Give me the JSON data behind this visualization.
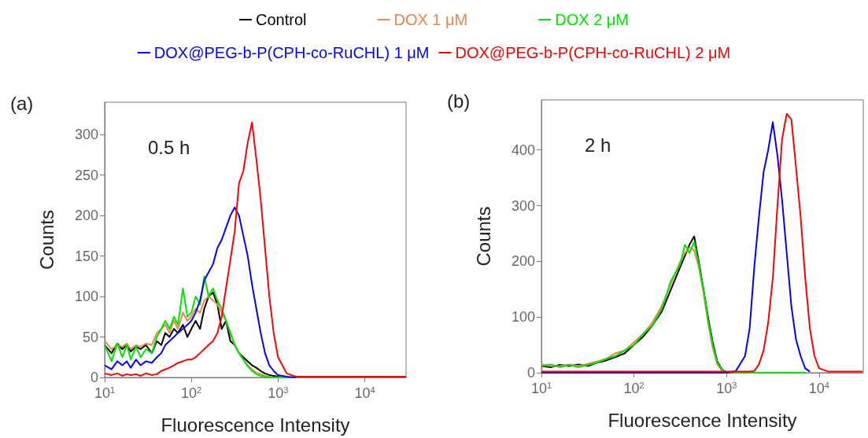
{
  "chart_data": [
    {
      "type": "line",
      "title": "(a)",
      "xlabel": "Fluorescence Intensity",
      "ylabel": "Counts",
      "annotations": [
        "0.5 h"
      ],
      "log": "x",
      "legend": "top",
      "xlim": [
        10,
        30000
      ],
      "xticks": [
        {
          "value": 10,
          "label": "10$^{1}$"
        },
        {
          "value": 100,
          "label": "10$^{2}$"
        },
        {
          "value": 1000,
          "label": "10$^{3}$"
        },
        {
          "value": 10000,
          "label": "10$^{4}$"
        }
      ],
      "ylim": [
        0,
        340
      ],
      "yticks": [
        0,
        50,
        100,
        150,
        200,
        250,
        300
      ],
      "x": [
        10,
        12,
        14,
        16,
        18,
        20,
        23,
        26,
        30,
        35,
        40,
        45,
        50,
        56,
        63,
        70,
        80,
        90,
        100,
        112,
        126,
        141,
        158,
        178,
        200,
        224,
        251,
        282,
        316,
        355,
        398,
        447,
        501,
        562,
        631,
        708,
        794,
        891,
        1000,
        1260,
        1600,
        2000,
        5000,
        10000,
        30000
      ],
      "series": [
        {
          "name": "Control",
          "color": "#000000",
          "values": [
            40,
            30,
            42,
            35,
            40,
            32,
            38,
            35,
            40,
            30,
            45,
            40,
            55,
            50,
            60,
            55,
            65,
            50,
            60,
            70,
            60,
            85,
            100,
            105,
            90,
            60,
            70,
            45,
            40,
            30,
            25,
            20,
            15,
            12,
            8,
            5,
            3,
            2,
            1,
            0,
            0,
            null,
            null,
            null,
            null
          ]
        },
        {
          "name": "DOX 1 μM",
          "color": "#e8884a",
          "values": [
            45,
            35,
            40,
            38,
            42,
            35,
            40,
            38,
            42,
            40,
            55,
            60,
            65,
            55,
            70,
            60,
            80,
            70,
            75,
            85,
            80,
            95,
            100,
            95,
            90,
            80,
            70,
            55,
            40,
            30,
            22,
            15,
            10,
            6,
            4,
            2,
            1,
            0,
            0,
            0,
            0,
            null,
            null,
            null,
            null
          ]
        },
        {
          "name": "DOX 2 μM",
          "color": "#00e600",
          "values": [
            40,
            20,
            42,
            25,
            40,
            22,
            38,
            25,
            35,
            30,
            50,
            60,
            70,
            60,
            75,
            65,
            110,
            75,
            80,
            100,
            90,
            125,
            100,
            110,
            95,
            85,
            70,
            55,
            40,
            30,
            22,
            14,
            8,
            4,
            2,
            1,
            0,
            0,
            0,
            0,
            0,
            null,
            null,
            null,
            null
          ]
        },
        {
          "name": "DOX@PEG-b-P(CPH-co-RuCHL) 1 μM",
          "color": "#0000ff",
          "values": [
            15,
            10,
            20,
            15,
            20,
            12,
            22,
            15,
            20,
            18,
            25,
            30,
            40,
            45,
            50,
            55,
            60,
            65,
            70,
            80,
            95,
            120,
            130,
            140,
            160,
            170,
            185,
            200,
            210,
            200,
            175,
            150,
            115,
            85,
            55,
            30,
            15,
            8,
            3,
            1,
            0,
            null,
            null,
            null,
            null
          ]
        },
        {
          "name": "DOX@PEG-b-P(CPH-co-RuCHL) 2 μM",
          "color": "#ff0000",
          "values": [
            5,
            3,
            5,
            2,
            4,
            3,
            4,
            2,
            5,
            3,
            4,
            8,
            10,
            12,
            15,
            18,
            20,
            22,
            22,
            25,
            30,
            35,
            40,
            45,
            55,
            75,
            110,
            145,
            180,
            240,
            255,
            290,
            315,
            270,
            220,
            160,
            100,
            55,
            25,
            5,
            1,
            1,
            1,
            1,
            1
          ]
        }
      ]
    },
    {
      "type": "line",
      "title": "(b)",
      "xlabel": "Fluorescence Intensity",
      "ylabel": "Counts",
      "annotations": [
        "2 h"
      ],
      "log": "x",
      "xlim": [
        10,
        30000
      ],
      "xticks": [
        {
          "value": 10,
          "label": "10$^{1}$"
        },
        {
          "value": 100,
          "label": "10$^{2}$"
        },
        {
          "value": 1000,
          "label": "10$^{3}$"
        },
        {
          "value": 10000,
          "label": "10$^{4}$"
        }
      ],
      "ylim": [
        0,
        490
      ],
      "yticks": [
        0,
        100,
        200,
        300,
        400
      ],
      "x": [
        10,
        12.6,
        15.8,
        20,
        25.1,
        31.6,
        39.8,
        50.1,
        63.1,
        79.4,
        100,
        126,
        158,
        200,
        251,
        316,
        355,
        398,
        447,
        501,
        562,
        631,
        708,
        794,
        891,
        1000,
        1259,
        1585,
        1778,
        1995,
        2239,
        2512,
        2818,
        3162,
        3548,
        3981,
        4467,
        5012,
        5623,
        6310,
        7079,
        7943,
        8913,
        10000,
        12589,
        29512
      ],
      "series": [
        {
          "color": "#000000",
          "values": [
            12,
            10,
            14,
            12,
            15,
            12,
            18,
            22,
            28,
            35,
            50,
            65,
            85,
            110,
            150,
            190,
            210,
            230,
            245,
            200,
            150,
            100,
            55,
            20,
            6,
            1,
            0,
            null,
            null,
            null,
            null,
            null,
            null,
            null,
            null,
            null,
            null,
            null,
            null,
            null,
            null,
            null,
            null,
            null,
            null,
            null
          ]
        },
        {
          "color": "#e8884a",
          "values": [
            15,
            12,
            12,
            15,
            12,
            16,
            20,
            25,
            35,
            40,
            55,
            70,
            90,
            120,
            160,
            200,
            215,
            225,
            220,
            190,
            145,
            90,
            45,
            15,
            4,
            1,
            0,
            null,
            null,
            null,
            null,
            null,
            null,
            null,
            null,
            null,
            null,
            null,
            null,
            null,
            null,
            null,
            null,
            null,
            null,
            null
          ]
        },
        {
          "color": "#00e600",
          "values": [
            12,
            15,
            10,
            14,
            10,
            14,
            18,
            25,
            30,
            40,
            50,
            70,
            85,
            115,
            165,
            195,
            230,
            215,
            235,
            195,
            150,
            95,
            50,
            18,
            5,
            1,
            0,
            0,
            0,
            0,
            0,
            0,
            0,
            0,
            0,
            0,
            0,
            0,
            0,
            0,
            0,
            null,
            null,
            null,
            null,
            null
          ]
        },
        {
          "color": "#0000ff",
          "values": [
            0,
            0,
            0,
            0,
            0,
            0,
            0,
            0,
            0,
            0,
            0,
            0,
            0,
            0,
            0,
            0,
            0,
            0,
            0,
            0,
            0,
            0,
            0,
            0,
            0,
            0,
            3,
            30,
            80,
            190,
            280,
            360,
            400,
            450,
            390,
            310,
            215,
            120,
            60,
            30,
            8,
            2,
            null,
            null,
            null,
            null
          ]
        },
        {
          "color": "#ff0000",
          "values": [
            2,
            2,
            2,
            2,
            2,
            2,
            2,
            2,
            2,
            2,
            2,
            2,
            2,
            2,
            2,
            2,
            2,
            2,
            2,
            2,
            2,
            2,
            2,
            2,
            2,
            2,
            2,
            2,
            2,
            3,
            15,
            40,
            90,
            170,
            300,
            420,
            465,
            455,
            370,
            280,
            170,
            80,
            30,
            8,
            2,
            2
          ]
        }
      ]
    }
  ]
}
